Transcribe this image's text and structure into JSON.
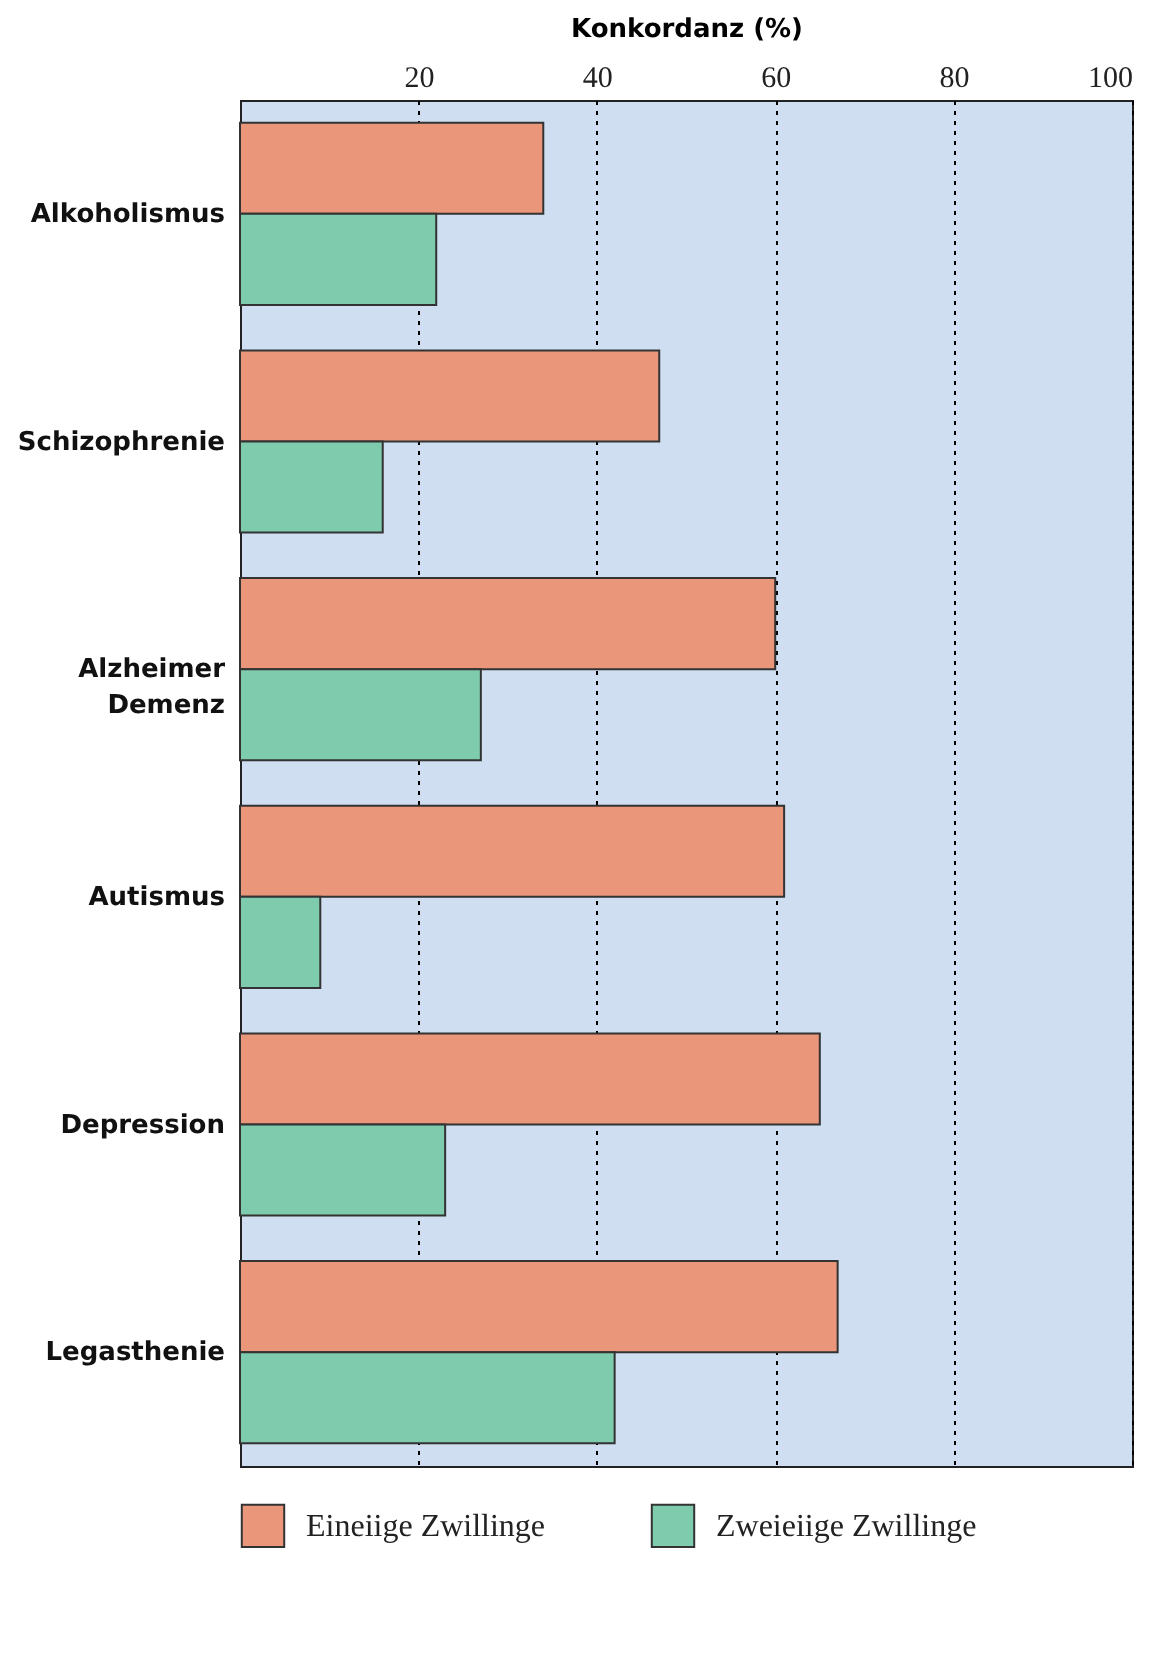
{
  "chart_data": {
    "type": "bar",
    "orientation": "horizontal",
    "xlabel": "Konkordanz (%)",
    "categories": [
      "Alkoholismus",
      "Schizophrenie",
      "Alzheimer Demenz",
      "Autismus",
      "Depression",
      "Legasthenie"
    ],
    "series": [
      {
        "name": "Eineiige Zwillinge",
        "color": "#e9967a",
        "values": [
          34,
          47,
          60,
          61,
          65,
          67
        ]
      },
      {
        "name": "Zweieiige Zwillinge",
        "color": "#7fcbae",
        "values": [
          22,
          16,
          27,
          9,
          23,
          42
        ]
      }
    ],
    "xlim": [
      0,
      100
    ],
    "xticks": [
      20,
      40,
      60,
      80,
      100
    ],
    "grid": "x",
    "legend": "bottom"
  }
}
